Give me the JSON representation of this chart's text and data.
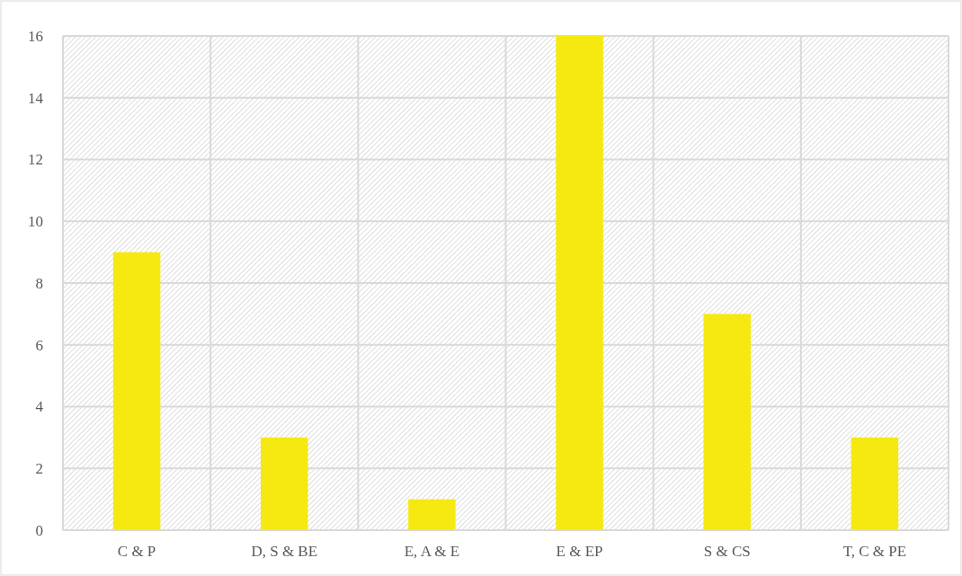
{
  "chart_data": {
    "type": "bar",
    "categories": [
      "C & P",
      "D, S & BE",
      "E, A & E",
      "E & EP",
      "S & CS",
      "T, C & PE"
    ],
    "values": [
      9,
      3,
      1,
      16,
      7,
      3
    ],
    "color": "#f5e911",
    "ylim": [
      0,
      16
    ],
    "yticks": [
      0,
      2,
      4,
      6,
      8,
      10,
      12,
      14,
      16
    ],
    "grid": true
  }
}
